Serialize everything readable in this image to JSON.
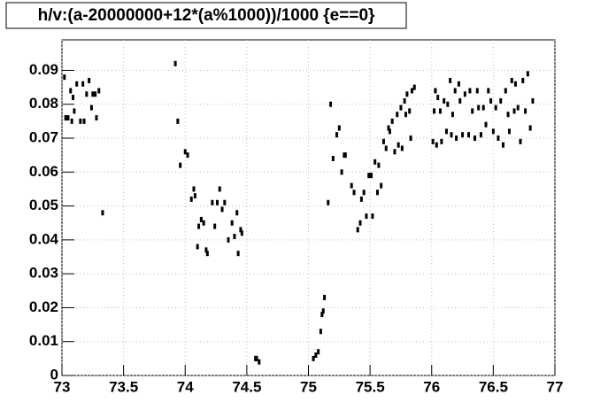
{
  "chart_data": {
    "type": "scatter",
    "title": "h/v:(a-20000000+12*(a%1000))/1000 {e==0}",
    "x": [
      73.02,
      73.03,
      73.05,
      73.07,
      73.08,
      73.09,
      73.1,
      73.12,
      73.15,
      73.17,
      73.18,
      73.2,
      73.22,
      73.24,
      73.25,
      73.27,
      73.28,
      73.3,
      73.33,
      73.92,
      73.94,
      73.96,
      74.0,
      74.02,
      74.05,
      74.07,
      74.08,
      74.1,
      74.11,
      74.13,
      74.15,
      74.17,
      74.18,
      74.22,
      74.24,
      74.26,
      74.28,
      74.3,
      74.32,
      74.35,
      74.38,
      74.4,
      74.42,
      74.43,
      74.45,
      74.46,
      74.57,
      74.58,
      74.6,
      75.04,
      75.06,
      75.08,
      75.1,
      75.11,
      75.12,
      75.13,
      75.16,
      75.18,
      75.2,
      75.23,
      75.25,
      75.27,
      75.29,
      75.3,
      75.35,
      75.37,
      75.4,
      75.42,
      75.43,
      75.45,
      75.47,
      75.49,
      75.51,
      75.52,
      75.54,
      75.56,
      75.57,
      75.59,
      75.61,
      75.63,
      75.65,
      75.66,
      75.68,
      75.7,
      75.72,
      75.73,
      75.75,
      75.76,
      75.78,
      75.79,
      75.8,
      75.82,
      75.83,
      75.84,
      75.86,
      76.01,
      76.02,
      76.03,
      76.04,
      76.05,
      76.07,
      76.08,
      76.1,
      76.12,
      76.13,
      76.15,
      76.16,
      76.17,
      76.19,
      76.2,
      76.22,
      76.23,
      76.25,
      76.27,
      76.3,
      76.31,
      76.33,
      76.35,
      76.37,
      76.38,
      76.4,
      76.42,
      76.44,
      76.46,
      76.48,
      76.5,
      76.52,
      76.54,
      76.56,
      76.58,
      76.6,
      76.62,
      76.63,
      76.65,
      76.67,
      76.68,
      76.7,
      76.72,
      76.74,
      76.76,
      76.78,
      76.8,
      76.82
    ],
    "values": [
      0.088,
      0.076,
      0.076,
      0.084,
      0.075,
      0.082,
      0.078,
      0.086,
      0.075,
      0.086,
      0.075,
      0.083,
      0.087,
      0.079,
      0.083,
      0.083,
      0.076,
      0.084,
      0.048,
      0.092,
      0.075,
      0.062,
      0.066,
      0.065,
      0.052,
      0.055,
      0.053,
      0.038,
      0.044,
      0.046,
      0.045,
      0.037,
      0.036,
      0.051,
      0.044,
      0.051,
      0.055,
      0.049,
      0.051,
      0.04,
      0.045,
      0.041,
      0.048,
      0.036,
      0.043,
      0.042,
      0.005,
      0.005,
      0.004,
      0.005,
      0.006,
      0.007,
      0.013,
      0.018,
      0.019,
      0.023,
      0.051,
      0.08,
      0.064,
      0.071,
      0.073,
      0.06,
      0.065,
      0.065,
      0.056,
      0.054,
      0.043,
      0.045,
      0.052,
      0.054,
      0.047,
      0.059,
      0.059,
      0.047,
      0.063,
      0.054,
      0.062,
      0.056,
      0.069,
      0.067,
      0.073,
      0.072,
      0.075,
      0.066,
      0.077,
      0.068,
      0.079,
      0.067,
      0.081,
      0.077,
      0.083,
      0.078,
      0.07,
      0.084,
      0.085,
      0.069,
      0.078,
      0.084,
      0.068,
      0.082,
      0.078,
      0.069,
      0.081,
      0.072,
      0.08,
      0.087,
      0.071,
      0.077,
      0.084,
      0.07,
      0.086,
      0.081,
      0.071,
      0.083,
      0.071,
      0.084,
      0.078,
      0.07,
      0.084,
      0.079,
      0.071,
      0.079,
      0.074,
      0.084,
      0.081,
      0.072,
      0.079,
      0.07,
      0.081,
      0.068,
      0.084,
      0.077,
      0.072,
      0.087,
      0.078,
      0.086,
      0.079,
      0.069,
      0.087,
      0.078,
      0.089,
      0.073,
      0.081
    ],
    "color": "#000000",
    "xlim": [
      73,
      77
    ],
    "xticks": [
      73,
      73.5,
      74,
      74.5,
      75,
      75.5,
      76,
      76.5,
      77
    ],
    "ylim": [
      0,
      0.099
    ],
    "yticks": [
      0,
      0.01,
      0.02,
      0.03,
      0.04,
      0.05,
      0.06,
      0.07,
      0.08,
      0.09
    ],
    "grid": true
  }
}
